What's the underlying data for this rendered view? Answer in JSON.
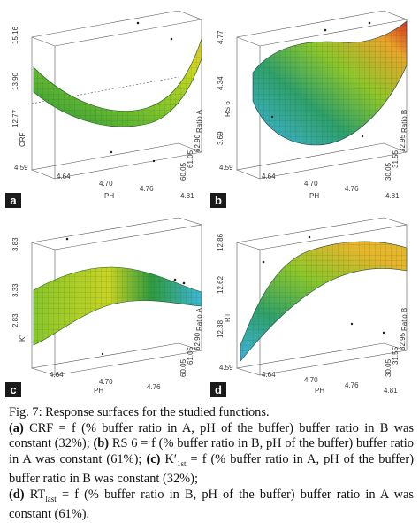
{
  "panels": [
    {
      "id": "a",
      "label": "a",
      "x_ticks": [
        "4.59",
        "4.64",
        "4.70",
        "4.76",
        "4.81"
      ],
      "x_axis_label": "PH",
      "y_ticks": [
        "15.16",
        "13.90",
        "12.77"
      ],
      "y_axis_label": "CRF",
      "depth_ticks": [
        "60.05",
        "61.05",
        "62.90"
      ],
      "depth_axis_label": "Ratio A",
      "colors": [
        "#2a9a3a",
        "#7cc22c",
        "#c9d81f",
        "#e7c02a"
      ]
    },
    {
      "id": "b",
      "label": "b",
      "x_ticks": [
        "4.59",
        "4.64",
        "4.70",
        "4.76",
        "4.81"
      ],
      "x_axis_label": "PH",
      "y_ticks": [
        "4.77",
        "4.34",
        "3.69"
      ],
      "y_axis_label": "RS 6",
      "depth_ticks": [
        "30.05",
        "31.55",
        "32.95"
      ],
      "depth_axis_label": "Ratio B",
      "colors": [
        "#3fb6e0",
        "#2fa06a",
        "#8cc62a",
        "#e8a52a",
        "#d8321c"
      ]
    },
    {
      "id": "c",
      "label": "c",
      "x_ticks": [
        "4.64",
        "4.70",
        "4.76"
      ],
      "x_axis_label": "PH",
      "y_ticks": [
        "3.83",
        "3.33",
        "2.83"
      ],
      "y_axis_label": "K'",
      "depth_ticks": [
        "60.05",
        "61.05",
        "62.90"
      ],
      "depth_axis_label": "Ratio A",
      "colors": [
        "#2f9b3c",
        "#88c62a",
        "#c7d323",
        "#3fb6d6"
      ]
    },
    {
      "id": "d",
      "label": "d",
      "x_ticks": [
        "4.59",
        "4.64",
        "4.70",
        "4.76",
        "4.81"
      ],
      "x_axis_label": "PH",
      "y_ticks": [
        "12.86",
        "12.62",
        "12.38"
      ],
      "y_axis_label": "RT",
      "depth_ticks": [
        "30.05",
        "31.55",
        "32.95"
      ],
      "depth_axis_label": "Ratio B",
      "colors": [
        "#3fb6e0",
        "#2fa06a",
        "#8cc62a",
        "#e5b52a"
      ]
    }
  ],
  "caption": {
    "title": "Fig. 7: Response surfaces for the studied functions.",
    "parts": [
      {
        "tag": "(a)",
        "text": "CRF = f (% buffer ratio in A, pH of the buffer) buffer ratio in B was constant (32%);"
      },
      {
        "tag": "(b)",
        "text": "RS 6 = f (% buffer ratio in B, pH of the buffer) buffer ratio in A was constant (61%);"
      },
      {
        "tag": "(c)",
        "text": "K′",
        "sub": "1st",
        "text2": "= f (% buffer ratio in A, pH of the buffer) buffer ratio in B was constant (32%);"
      },
      {
        "tag": "(d)",
        "text": "RT",
        "sub": "last",
        "text2": "= f (% buffer ratio in B, pH of the buffer) buffer ratio in A was constant (61%)."
      }
    ]
  }
}
